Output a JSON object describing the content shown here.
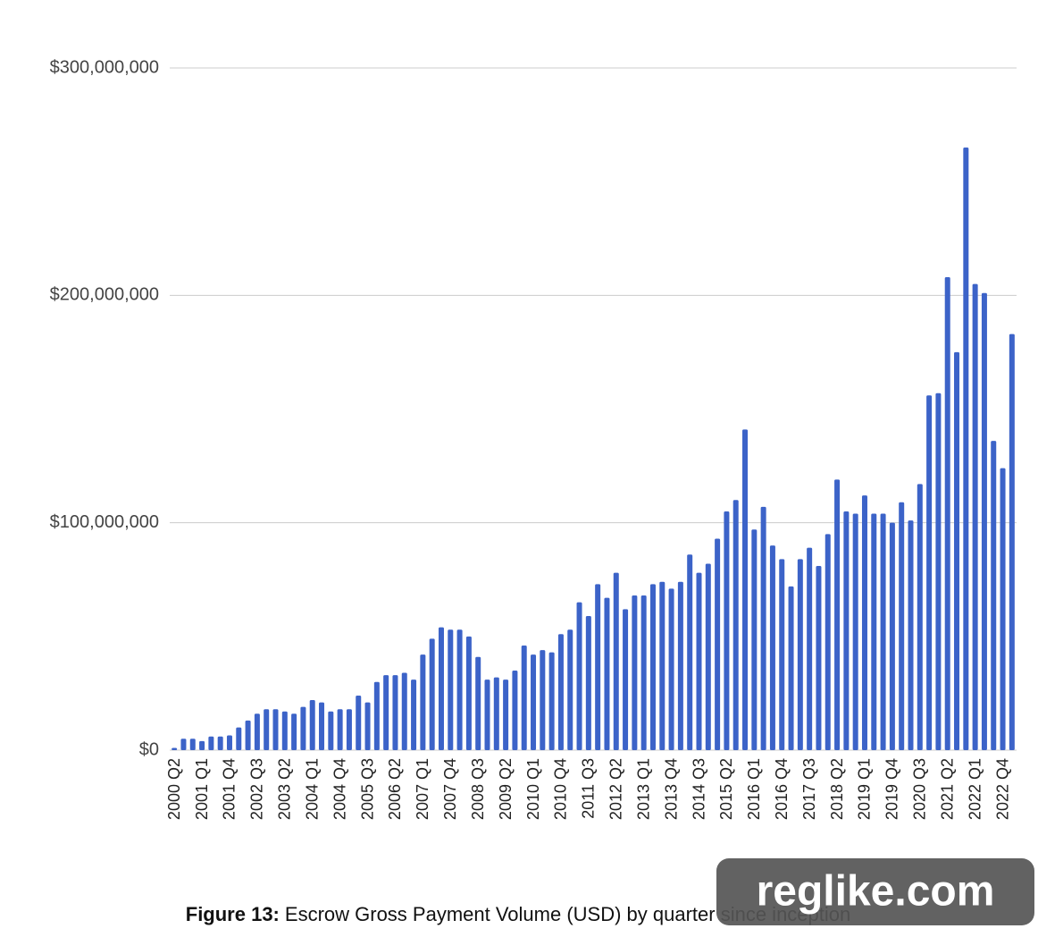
{
  "chart_data": {
    "type": "bar",
    "caption_label": "Figure 13:",
    "caption": "Escrow Gross Payment Volume (USD) by quarter since inception",
    "watermark": "reglike.com",
    "color": "#3c63c8",
    "grid": true,
    "ylim": [
      0,
      300000000
    ],
    "yticks": [
      {
        "value": 0,
        "label": "$0"
      },
      {
        "value": 100000000,
        "label": "$100,000,000"
      },
      {
        "value": 200000000,
        "label": "$200,000,000"
      },
      {
        "value": 300000000,
        "label": "$300,000,000"
      }
    ],
    "categories": [
      "2000 Q2",
      null,
      null,
      "2001 Q1",
      null,
      null,
      "2001 Q4",
      null,
      null,
      "2002 Q3",
      null,
      null,
      "2003 Q2",
      null,
      null,
      "2004 Q1",
      null,
      null,
      "2004 Q4",
      null,
      null,
      "2005 Q3",
      null,
      null,
      "2006 Q2",
      null,
      null,
      "2007 Q1",
      null,
      null,
      "2007 Q4",
      null,
      null,
      "2008 Q3",
      null,
      null,
      "2009 Q2",
      null,
      null,
      "2010 Q1",
      null,
      null,
      "2010 Q4",
      null,
      null,
      "2011 Q3",
      null,
      null,
      "2012 Q2",
      null,
      null,
      "2013 Q1",
      null,
      null,
      "2013 Q4",
      null,
      null,
      "2014 Q3",
      null,
      null,
      "2015 Q2",
      null,
      null,
      "2016 Q1",
      null,
      null,
      "2016 Q4",
      null,
      null,
      "2017 Q3",
      null,
      null,
      "2018 Q2",
      null,
      null,
      "2019 Q1",
      null,
      null,
      "2019 Q4",
      null,
      null,
      "2020 Q3",
      null,
      null,
      "2021 Q2",
      null,
      null,
      "2022 Q1",
      null,
      null,
      "2022 Q4",
      null
    ],
    "values": [
      1000000,
      5000000,
      5000000,
      4000000,
      6000000,
      6000000,
      6500000,
      10000000,
      13000000,
      16000000,
      18000000,
      18000000,
      17000000,
      16000000,
      19000000,
      22000000,
      21000000,
      17000000,
      18000000,
      18000000,
      24000000,
      21000000,
      30000000,
      33000000,
      33000000,
      34000000,
      31000000,
      42000000,
      49000000,
      54000000,
      53000000,
      53000000,
      50000000,
      41000000,
      31000000,
      32000000,
      31000000,
      35000000,
      46000000,
      42000000,
      44000000,
      43000000,
      51000000,
      53000000,
      65000000,
      59000000,
      73000000,
      67000000,
      78000000,
      62000000,
      68000000,
      68000000,
      73000000,
      74000000,
      71000000,
      74000000,
      86000000,
      78000000,
      82000000,
      93000000,
      105000000,
      110000000,
      141000000,
      97000000,
      107000000,
      90000000,
      84000000,
      72000000,
      84000000,
      89000000,
      81000000,
      95000000,
      119000000,
      105000000,
      104000000,
      112000000,
      104000000,
      104000000,
      100000000,
      109000000,
      101000000,
      117000000,
      156000000,
      157000000,
      208000000,
      175000000,
      265000000,
      205000000,
      201000000,
      136000000,
      124000000,
      183000000
    ]
  }
}
